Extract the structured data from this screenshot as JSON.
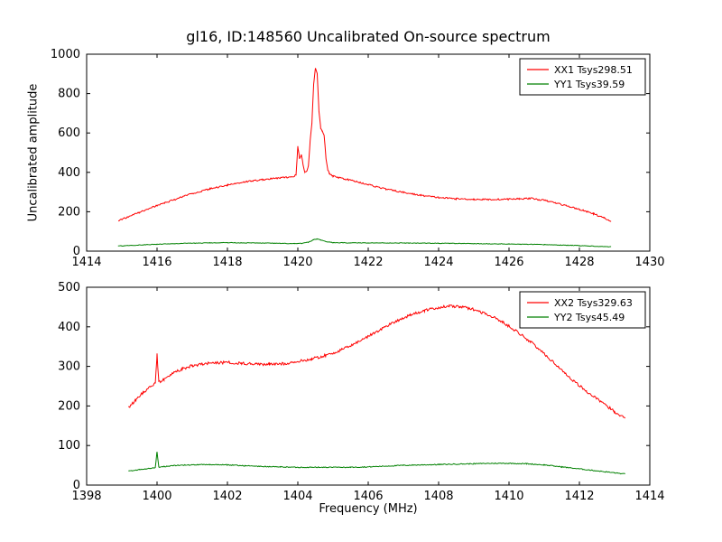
{
  "title": "gl16, ID:148560 Uncalibrated On-source spectrum",
  "xlabel": "Frequency (MHz)",
  "ylabel": "Uncalibrated amplitude",
  "background": "#ffffff",
  "chart_data": [
    {
      "type": "line",
      "xlim": [
        1414,
        1430
      ],
      "ylim": [
        0,
        1000
      ],
      "xticks": [
        1414,
        1416,
        1418,
        1420,
        1422,
        1424,
        1426,
        1428,
        1430
      ],
      "yticks": [
        0,
        200,
        400,
        600,
        800,
        1000
      ],
      "grid": false,
      "legend_position": "upper right",
      "series": [
        {
          "name": "XX1 Tsys298.51",
          "color": "#ff0000",
          "noise": 4,
          "points": [
            [
              1414.9,
              155
            ],
            [
              1415.2,
              175
            ],
            [
              1415.5,
              197
            ],
            [
              1416,
              232
            ],
            [
              1416.5,
              262
            ],
            [
              1417,
              292
            ],
            [
              1417.5,
              316
            ],
            [
              1418,
              336
            ],
            [
              1418.5,
              352
            ],
            [
              1419,
              363
            ],
            [
              1419.5,
              372
            ],
            [
              1419.8,
              377
            ],
            [
              1419.9,
              380
            ],
            [
              1419.95,
              388
            ],
            [
              1420,
              530
            ],
            [
              1420.05,
              470
            ],
            [
              1420.1,
              490
            ],
            [
              1420.15,
              440
            ],
            [
              1420.2,
              400
            ],
            [
              1420.25,
              405
            ],
            [
              1420.3,
              430
            ],
            [
              1420.35,
              560
            ],
            [
              1420.4,
              650
            ],
            [
              1420.45,
              850
            ],
            [
              1420.5,
              930
            ],
            [
              1420.55,
              905
            ],
            [
              1420.6,
              710
            ],
            [
              1420.65,
              625
            ],
            [
              1420.7,
              605
            ],
            [
              1420.75,
              585
            ],
            [
              1420.8,
              470
            ],
            [
              1420.85,
              415
            ],
            [
              1420.9,
              392
            ],
            [
              1421,
              380
            ],
            [
              1421.3,
              368
            ],
            [
              1421.6,
              356
            ],
            [
              1422,
              338
            ],
            [
              1422.5,
              315
            ],
            [
              1423,
              298
            ],
            [
              1423.5,
              283
            ],
            [
              1424,
              272
            ],
            [
              1424.5,
              266
            ],
            [
              1425,
              263
            ],
            [
              1425.5,
              262
            ],
            [
              1426,
              264
            ],
            [
              1426.3,
              266
            ],
            [
              1426.6,
              268
            ],
            [
              1427,
              258
            ],
            [
              1427.3,
              246
            ],
            [
              1427.6,
              232
            ],
            [
              1428,
              212
            ],
            [
              1428.4,
              190
            ],
            [
              1428.7,
              168
            ],
            [
              1428.9,
              150
            ]
          ]
        },
        {
          "name": "YY1 Tsys39.59",
          "color": "#008000",
          "noise": 1.5,
          "points": [
            [
              1414.9,
              26
            ],
            [
              1415.5,
              31
            ],
            [
              1416,
              35
            ],
            [
              1416.5,
              38
            ],
            [
              1417,
              40
            ],
            [
              1417.5,
              42
            ],
            [
              1418,
              43
            ],
            [
              1418.5,
              42
            ],
            [
              1419,
              41
            ],
            [
              1419.5,
              39
            ],
            [
              1419.9,
              38
            ],
            [
              1420.1,
              39
            ],
            [
              1420.3,
              45
            ],
            [
              1420.45,
              58
            ],
            [
              1420.55,
              62
            ],
            [
              1420.65,
              57
            ],
            [
              1420.8,
              48
            ],
            [
              1421,
              43
            ],
            [
              1421.5,
              42
            ],
            [
              1422,
              42
            ],
            [
              1423,
              41
            ],
            [
              1424,
              40
            ],
            [
              1425,
              38
            ],
            [
              1426,
              36
            ],
            [
              1427,
              33
            ],
            [
              1428,
              28
            ],
            [
              1428.9,
              22
            ]
          ]
        }
      ]
    },
    {
      "type": "line",
      "xlim": [
        1398,
        1414
      ],
      "ylim": [
        0,
        500
      ],
      "xticks": [
        1398,
        1400,
        1402,
        1404,
        1406,
        1408,
        1410,
        1412,
        1414
      ],
      "yticks": [
        0,
        100,
        200,
        300,
        400,
        500
      ],
      "grid": false,
      "legend_position": "upper right",
      "series": [
        {
          "name": "XX2 Tsys329.63",
          "color": "#ff0000",
          "noise": 3.5,
          "points": [
            [
              1399.2,
              197
            ],
            [
              1399.4,
              215
            ],
            [
              1399.6,
              233
            ],
            [
              1399.8,
              248
            ],
            [
              1399.95,
              258
            ],
            [
              1400,
              330
            ],
            [
              1400.05,
              260
            ],
            [
              1400.2,
              268
            ],
            [
              1400.4,
              280
            ],
            [
              1400.7,
              293
            ],
            [
              1401,
              302
            ],
            [
              1401.3,
              306
            ],
            [
              1401.6,
              309
            ],
            [
              1402,
              310
            ],
            [
              1402.4,
              308
            ],
            [
              1402.8,
              305
            ],
            [
              1403.2,
              305
            ],
            [
              1403.6,
              307
            ],
            [
              1404,
              312
            ],
            [
              1404.4,
              319
            ],
            [
              1404.8,
              328
            ],
            [
              1405.2,
              340
            ],
            [
              1405.6,
              357
            ],
            [
              1406,
              376
            ],
            [
              1406.4,
              396
            ],
            [
              1406.8,
              415
            ],
            [
              1407.2,
              430
            ],
            [
              1407.6,
              441
            ],
            [
              1408,
              449
            ],
            [
              1408.3,
              452
            ],
            [
              1408.6,
              451
            ],
            [
              1409,
              444
            ],
            [
              1409.4,
              431
            ],
            [
              1409.8,
              413
            ],
            [
              1410.2,
              390
            ],
            [
              1410.6,
              363
            ],
            [
              1411,
              332
            ],
            [
              1411.4,
              299
            ],
            [
              1411.8,
              266
            ],
            [
              1412.2,
              237
            ],
            [
              1412.6,
              211
            ],
            [
              1413,
              186
            ],
            [
              1413.3,
              168
            ]
          ]
        },
        {
          "name": "YY2 Tsys45.49",
          "color": "#008000",
          "noise": 1.2,
          "points": [
            [
              1399.2,
              36
            ],
            [
              1399.5,
              39
            ],
            [
              1399.8,
              42
            ],
            [
              1399.95,
              44
            ],
            [
              1400,
              85
            ],
            [
              1400.05,
              45
            ],
            [
              1400.3,
              48
            ],
            [
              1400.6,
              50
            ],
            [
              1401,
              51
            ],
            [
              1401.5,
              52
            ],
            [
              1402,
              51
            ],
            [
              1402.5,
              49
            ],
            [
              1403,
              47
            ],
            [
              1403.5,
              46
            ],
            [
              1404,
              45
            ],
            [
              1404.5,
              45
            ],
            [
              1405,
              45
            ],
            [
              1405.5,
              45
            ],
            [
              1406,
              46
            ],
            [
              1406.5,
              48
            ],
            [
              1407,
              50
            ],
            [
              1407.5,
              51
            ],
            [
              1408,
              52
            ],
            [
              1408.5,
              53
            ],
            [
              1409,
              54
            ],
            [
              1409.5,
              55
            ],
            [
              1410,
              55
            ],
            [
              1410.5,
              54
            ],
            [
              1411,
              51
            ],
            [
              1411.5,
              46
            ],
            [
              1412,
              41
            ],
            [
              1412.5,
              36
            ],
            [
              1413,
              31
            ],
            [
              1413.3,
              28
            ]
          ]
        }
      ]
    }
  ]
}
